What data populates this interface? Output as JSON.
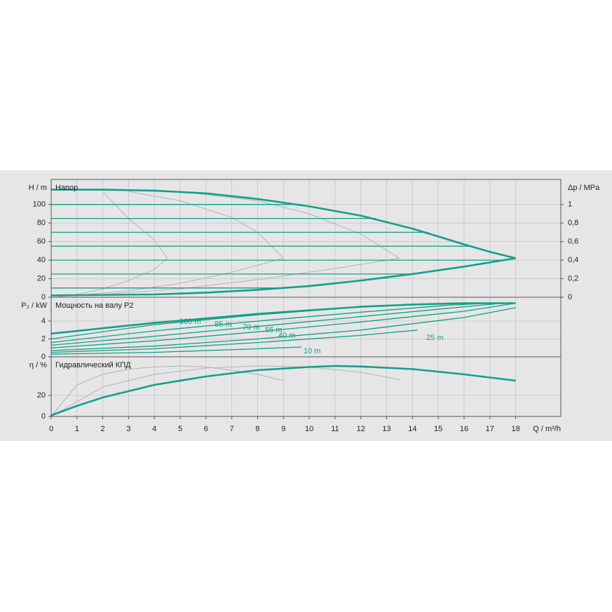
{
  "chart_data": [
    {
      "type": "line",
      "title": "Напор",
      "ylabel": "H / m",
      "y2label": "Δp / MPa",
      "ylim": [
        0,
        127
      ],
      "yticks": [
        0,
        20,
        40,
        60,
        80,
        100
      ],
      "y2lim": [
        0,
        1.27
      ],
      "y2ticks": [
        0,
        {
          "value": 0.2,
          "label": "0,2"
        },
        {
          "value": 0.4,
          "label": "0,4"
        },
        {
          "value": 0.6,
          "label": "0,6"
        },
        {
          "value": 0.8,
          "label": "0,8"
        },
        1
      ],
      "grid": true,
      "series": [
        {
          "color": "#b4b4b4",
          "line_width": 1,
          "x": [
            2,
            3,
            4,
            4.5,
            4,
            3,
            2,
            1,
            0.2
          ],
          "values": [
            114,
            85,
            62,
            42,
            30,
            18,
            9,
            3,
            0
          ]
        },
        {
          "color": "#b4b4b4",
          "line_width": 1,
          "x": [
            3,
            5,
            7,
            8,
            9,
            7,
            5,
            3,
            1
          ],
          "values": [
            114,
            104,
            86,
            70,
            42,
            27,
            15,
            7,
            2
          ]
        },
        {
          "color": "#b4b4b4",
          "line_width": 1,
          "x": [
            5,
            8,
            10,
            12,
            13.5,
            11,
            8,
            5,
            2
          ],
          "values": [
            114,
            104,
            90,
            68,
            42,
            31,
            19,
            9,
            3
          ]
        },
        {
          "color": "#12a08a",
          "line_width": 1.3,
          "x": [
            0,
            9.7
          ],
          "values": [
            100,
            100
          ]
        },
        {
          "color": "#12a08a",
          "line_width": 1.3,
          "x": [
            0,
            12.6
          ],
          "values": [
            85,
            85
          ]
        },
        {
          "color": "#12a08a",
          "line_width": 1.3,
          "x": [
            0,
            14.6
          ],
          "values": [
            70,
            70
          ]
        },
        {
          "color": "#12a08a",
          "line_width": 1.3,
          "x": [
            0,
            16.3
          ],
          "values": [
            55,
            55
          ]
        },
        {
          "color": "#12a08a",
          "line_width": 1.3,
          "x": [
            0,
            17.6
          ],
          "values": [
            40,
            40
          ]
        },
        {
          "color": "#12a08a",
          "line_width": 1.3,
          "x": [
            0,
            13.9
          ],
          "values": [
            25,
            25
          ]
        },
        {
          "color": "#12a08a",
          "line_width": 1.3,
          "x": [
            0,
            9.0
          ],
          "values": [
            10,
            10
          ]
        },
        {
          "color": "#12a08a",
          "line_width": 2.6,
          "x": [
            0,
            2,
            4,
            6,
            8,
            10,
            12,
            14,
            16,
            17,
            18
          ],
          "values": [
            116,
            116,
            115,
            112,
            106,
            98,
            88,
            74,
            57,
            49,
            42
          ]
        },
        {
          "color": "#12a08a",
          "line_width": 2.6,
          "x": [
            0,
            4,
            6,
            8,
            10,
            12,
            14,
            16,
            18
          ],
          "values": [
            2,
            3,
            5,
            8,
            12,
            18,
            25,
            33,
            42
          ]
        }
      ]
    },
    {
      "type": "line",
      "title": "Мощность на валу P2",
      "ylabel": "P₂ / kW",
      "ylim": [
        0,
        6.67
      ],
      "yticks": [
        0,
        2,
        4
      ],
      "grid": true,
      "series": [
        {
          "color": "#12a08a",
          "line_width": 2.6,
          "x": [
            0,
            2,
            4,
            6,
            8,
            10,
            12,
            14,
            16,
            18
          ],
          "values": [
            2.6,
            3.2,
            3.8,
            4.3,
            4.8,
            5.2,
            5.6,
            5.85,
            6.0,
            6.0
          ]
        },
        {
          "name": "100 m",
          "color": "#12a08a",
          "line_width": 1.3,
          "x": [
            0,
            4,
            8,
            12,
            16
          ],
          "values": [
            2.0,
            3.6,
            4.7,
            5.6,
            6.0
          ]
        },
        {
          "name": "85 m",
          "color": "#12a08a",
          "line_width": 1.3,
          "x": [
            0,
            4,
            8,
            12,
            15.5,
            17
          ],
          "values": [
            1.6,
            2.9,
            4.0,
            5.0,
            5.8,
            6.0
          ]
        },
        {
          "name": "70 m",
          "color": "#12a08a",
          "line_width": 1.3,
          "x": [
            0,
            4,
            8,
            12,
            16,
            17.5
          ],
          "values": [
            1.3,
            2.3,
            3.4,
            4.5,
            5.6,
            6.0
          ]
        },
        {
          "name": "55 m",
          "color": "#12a08a",
          "line_width": 1.3,
          "x": [
            0,
            4,
            8,
            12,
            16,
            18
          ],
          "values": [
            1.0,
            1.8,
            2.8,
            3.9,
            5.1,
            6.0
          ]
        },
        {
          "name": "40 m",
          "color": "#12a08a",
          "line_width": 1.3,
          "x": [
            0,
            4,
            8,
            12,
            16,
            18
          ],
          "values": [
            0.7,
            1.2,
            2.0,
            3.0,
            4.4,
            5.5
          ]
        },
        {
          "name": "25 m",
          "color": "#12a08a",
          "line_width": 1.3,
          "x": [
            0,
            4,
            8,
            12,
            14.2
          ],
          "values": [
            0.5,
            0.9,
            1.6,
            2.4,
            3.0
          ]
        },
        {
          "name": "10 m",
          "color": "#12a08a",
          "line_width": 1.3,
          "x": [
            0,
            4,
            8,
            9.7
          ],
          "values": [
            0.3,
            0.5,
            0.9,
            1.1
          ]
        }
      ]
    },
    {
      "type": "line",
      "title": "Гидравлический КПД",
      "ylabel": "η / %",
      "xlabel": "Q / m³/h",
      "ylim": [
        0,
        56.7
      ],
      "yticks": [
        0,
        20
      ],
      "xlim": [
        0,
        19.75
      ],
      "xticks": [
        0,
        1,
        2,
        3,
        4,
        5,
        6,
        7,
        8,
        9,
        10,
        11,
        12,
        13,
        14,
        15,
        16,
        17,
        18
      ],
      "grid": true,
      "series": [
        {
          "color": "#b4b4b4",
          "line_width": 1,
          "x": [
            0,
            1,
            2,
            3,
            4,
            5,
            6,
            7,
            8,
            9
          ],
          "values": [
            0,
            30,
            40,
            45,
            47,
            48,
            47,
            44,
            40,
            34
          ]
        },
        {
          "color": "#b4b4b4",
          "line_width": 1,
          "x": [
            0,
            2,
            4,
            6,
            8,
            10,
            12,
            13.5
          ],
          "values": [
            0,
            28,
            40,
            46,
            48,
            47,
            42,
            35
          ]
        },
        {
          "color": "#12a08a",
          "line_width": 2.6,
          "x": [
            0,
            1,
            2,
            4,
            6,
            8,
            10,
            11,
            12,
            14,
            16,
            18
          ],
          "values": [
            1,
            10,
            18,
            30,
            38,
            44,
            47,
            48,
            47.5,
            45,
            40,
            34
          ]
        }
      ]
    }
  ]
}
